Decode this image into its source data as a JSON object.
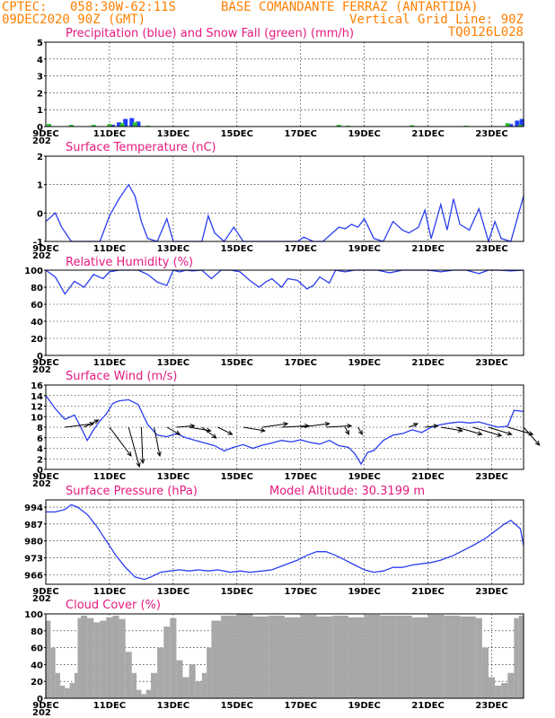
{
  "header": {
    "line1_left": "CPTEC:",
    "line1_coords": "058:30W-62:11S",
    "line1_station": "BASE COMANDANTE FERRAZ (ANTARTIDA)",
    "line2_date": "09DEC2020 90Z (GMT)",
    "line2_grid": "Vertical Grid Line: 90Z",
    "line3_model": "TQ0126L028"
  },
  "x_axis": {
    "labels": [
      "9DEC",
      "11DEC",
      "13DEC",
      "15DEC",
      "17DEC",
      "19DEC",
      "21DEC",
      "23DEC"
    ],
    "label_days": [
      9,
      11,
      13,
      15,
      17,
      19,
      21,
      23
    ],
    "start_day": 9,
    "end_day": 24,
    "stub": "202"
  },
  "colors": {
    "header": "#ff7f00",
    "panel_title": "#e6197f",
    "line": "#2b3ef0",
    "precip": "#1f3fff",
    "snow": "#2dbf2d",
    "cloud": "#a8a8a8"
  },
  "chart_data": [
    {
      "type": "bar",
      "id": "precip",
      "title": "Precipitation (blue) and Snow Fall (green) (mm/h)",
      "ylim": [
        0,
        5
      ],
      "yticks": [
        0,
        1,
        2,
        3,
        4,
        5
      ],
      "series": [
        {
          "name": "Precipitation",
          "color": "#1f3fff",
          "x": [
            11.1,
            11.3,
            11.5,
            11.7,
            11.9,
            23.6,
            23.8,
            23.95
          ],
          "values": [
            0.1,
            0.25,
            0.45,
            0.5,
            0.3,
            0.15,
            0.35,
            0.45
          ]
        },
        {
          "name": "Snow Fall",
          "color": "#2dbf2d",
          "x": [
            9.1,
            9.8,
            10.5,
            11.0,
            11.4,
            11.8,
            12.2,
            18.2,
            18.5,
            20.5,
            22.2,
            23.5,
            23.9
          ],
          "values": [
            0.15,
            0.1,
            0.1,
            0.15,
            0.2,
            0.25,
            0.05,
            0.1,
            0.05,
            0.08,
            0.05,
            0.2,
            0.1
          ]
        }
      ]
    },
    {
      "type": "line",
      "id": "temperature",
      "title": "Surface Temperature (nC)",
      "ylim": [
        -1,
        2
      ],
      "yticks": [
        -1,
        0,
        1,
        2
      ],
      "x": [
        9.0,
        9.3,
        9.5,
        9.8,
        10.1,
        10.4,
        10.7,
        11.0,
        11.3,
        11.6,
        11.8,
        12.0,
        12.2,
        12.5,
        12.8,
        13.0,
        13.3,
        13.6,
        13.9,
        14.1,
        14.3,
        14.6,
        14.9,
        15.2,
        15.5,
        15.8,
        16.1,
        16.4,
        16.7,
        16.9,
        17.1,
        17.4,
        17.7,
        18.0,
        18.2,
        18.4,
        18.6,
        18.8,
        19.0,
        19.3,
        19.6,
        19.9,
        20.2,
        20.4,
        20.7,
        20.9,
        21.1,
        21.4,
        21.6,
        21.8,
        22.0,
        22.3,
        22.6,
        22.9,
        23.1,
        23.3,
        23.6,
        23.8,
        24.0
      ],
      "values": [
        -0.3,
        0.0,
        -0.5,
        -1.0,
        -1.0,
        -1.0,
        -1.0,
        -0.1,
        0.5,
        1.0,
        0.6,
        -0.3,
        -0.9,
        -1.0,
        -0.2,
        -1.0,
        -1.0,
        -1.0,
        -1.0,
        -0.1,
        -0.7,
        -1.0,
        -0.5,
        -1.0,
        -1.0,
        -1.0,
        -1.0,
        -1.0,
        -1.0,
        -1.0,
        -0.85,
        -1.0,
        -1.0,
        -0.7,
        -0.5,
        -0.55,
        -0.4,
        -0.5,
        -0.2,
        -0.9,
        -1.0,
        -0.3,
        -0.6,
        -0.7,
        -0.5,
        0.1,
        -0.9,
        0.3,
        -0.6,
        0.5,
        -0.4,
        -0.6,
        0.15,
        -1.0,
        -0.3,
        -0.9,
        -1.0,
        -0.2,
        0.6
      ]
    },
    {
      "type": "line",
      "id": "humidity",
      "title": "Relative Humidity (%)",
      "ylim": [
        0,
        100
      ],
      "yticks": [
        0,
        20,
        40,
        60,
        80,
        100
      ],
      "x": [
        9.0,
        9.3,
        9.6,
        9.9,
        10.2,
        10.5,
        10.8,
        11.0,
        11.3,
        11.6,
        11.9,
        12.2,
        12.5,
        12.8,
        13.0,
        13.2,
        13.4,
        13.6,
        13.9,
        14.2,
        14.5,
        14.8,
        15.1,
        15.4,
        15.7,
        15.9,
        16.1,
        16.4,
        16.6,
        16.9,
        17.2,
        17.4,
        17.6,
        17.9,
        18.1,
        18.4,
        18.7,
        19.0,
        19.4,
        19.8,
        20.2,
        20.6,
        21.0,
        21.4,
        21.8,
        22.2,
        22.6,
        22.9,
        23.2,
        23.6,
        24.0
      ],
      "values": [
        100,
        92,
        72,
        87,
        80,
        95,
        90,
        98,
        100,
        100,
        100,
        95,
        86,
        82,
        100,
        98,
        100,
        99,
        100,
        90,
        100,
        100,
        98,
        88,
        80,
        86,
        90,
        80,
        90,
        88,
        78,
        82,
        92,
        85,
        100,
        98,
        100,
        100,
        100,
        97,
        100,
        100,
        100,
        98,
        100,
        100,
        96,
        100,
        100,
        99,
        100
      ]
    },
    {
      "type": "line",
      "id": "wind",
      "title": "Surface Wind (m/s)",
      "ylim": [
        0,
        16
      ],
      "yticks": [
        0,
        2,
        4,
        6,
        8,
        10,
        12,
        14,
        16
      ],
      "x": [
        9.0,
        9.3,
        9.6,
        9.9,
        10.1,
        10.3,
        10.5,
        10.7,
        10.9,
        11.1,
        11.3,
        11.6,
        11.9,
        12.2,
        12.5,
        12.8,
        13.1,
        13.4,
        13.7,
        14.0,
        14.3,
        14.6,
        14.9,
        15.2,
        15.5,
        15.8,
        16.1,
        16.4,
        16.7,
        17.0,
        17.3,
        17.6,
        17.9,
        18.2,
        18.5,
        18.7,
        18.9,
        19.1,
        19.3,
        19.6,
        19.9,
        20.2,
        20.5,
        20.8,
        21.1,
        21.4,
        21.7,
        22.0,
        22.3,
        22.6,
        22.9,
        23.2,
        23.5,
        23.7,
        24.0
      ],
      "values": [
        14,
        11.5,
        9.5,
        10.3,
        8.0,
        5.5,
        7.5,
        9.2,
        10.5,
        12.5,
        13.0,
        13.2,
        12.3,
        8.5,
        6.5,
        6.2,
        6.8,
        6.0,
        5.5,
        5.0,
        4.5,
        3.5,
        4.2,
        4.7,
        4.0,
        4.6,
        5.0,
        5.5,
        5.2,
        5.6,
        5.1,
        4.8,
        5.5,
        4.5,
        4.2,
        3.0,
        1.0,
        3.2,
        3.6,
        5.5,
        6.5,
        6.8,
        7.5,
        7.0,
        8.0,
        8.5,
        8.8,
        9.0,
        8.8,
        9.0,
        8.5,
        8.0,
        8.2,
        11.2,
        11.0
      ]
    },
    {
      "type": "line",
      "id": "pressure",
      "title": "Surface Pressure (hPa)",
      "annotation": "Model Altitude: 30.3199 m",
      "ylim": [
        962,
        997
      ],
      "yticks": [
        966,
        973,
        980,
        987,
        994
      ],
      "x": [
        9.0,
        9.3,
        9.6,
        9.8,
        10.0,
        10.3,
        10.6,
        10.9,
        11.2,
        11.5,
        11.8,
        12.1,
        12.3,
        12.6,
        12.9,
        13.2,
        13.5,
        13.8,
        14.1,
        14.4,
        14.8,
        15.1,
        15.4,
        15.8,
        16.1,
        16.5,
        16.9,
        17.2,
        17.5,
        17.8,
        18.1,
        18.4,
        18.7,
        19.0,
        19.3,
        19.6,
        19.9,
        20.2,
        20.5,
        20.8,
        21.1,
        21.4,
        21.8,
        22.1,
        22.4,
        22.8,
        23.1,
        23.4,
        23.6,
        23.9,
        24.0
      ],
      "values": [
        992,
        992,
        993,
        995,
        994,
        991,
        986,
        980,
        974,
        969,
        965,
        964,
        965,
        967,
        967.5,
        968,
        967.5,
        968,
        967.5,
        968,
        967,
        967.5,
        967,
        967.5,
        968,
        970,
        972,
        974,
        975.5,
        975.5,
        974,
        972,
        970,
        968,
        967,
        967.5,
        969,
        969,
        970,
        970.5,
        971,
        972,
        974,
        976,
        978,
        981,
        984,
        987,
        988.5,
        985,
        978
      ]
    },
    {
      "type": "area",
      "id": "cloud",
      "title": "Cloud Cover (%)",
      "ylim": [
        0,
        100
      ],
      "yticks": [
        0,
        20,
        40,
        60,
        80,
        100
      ],
      "x": [
        9.0,
        9.15,
        9.3,
        9.45,
        9.6,
        9.75,
        9.9,
        10.0,
        10.1,
        10.3,
        10.5,
        10.7,
        10.9,
        11.1,
        11.3,
        11.5,
        11.7,
        11.85,
        12.0,
        12.15,
        12.3,
        12.5,
        12.7,
        12.9,
        13.1,
        13.3,
        13.5,
        13.7,
        13.9,
        14.05,
        14.2,
        14.5,
        15.0,
        15.5,
        16.0,
        16.5,
        17.0,
        17.5,
        18.0,
        18.5,
        19.0,
        19.5,
        20.0,
        20.5,
        21.0,
        21.5,
        22.0,
        22.5,
        22.7,
        22.9,
        23.1,
        23.3,
        23.5,
        23.7,
        23.85,
        24.0
      ],
      "values": [
        92,
        60,
        30,
        15,
        12,
        18,
        30,
        95,
        98,
        95,
        90,
        92,
        96,
        98,
        94,
        55,
        30,
        10,
        5,
        10,
        30,
        60,
        85,
        95,
        45,
        25,
        40,
        20,
        30,
        60,
        92,
        98,
        100,
        97,
        98,
        96,
        99,
        97,
        98,
        96,
        99,
        98,
        98,
        96,
        99,
        98,
        97,
        95,
        60,
        25,
        15,
        18,
        30,
        95,
        98,
        97
      ]
    }
  ],
  "wind_vectors": {
    "x": [
      9.6,
      10.2,
      11.0,
      11.6,
      12.0,
      12.4,
      12.8,
      13.1,
      13.5,
      13.9,
      14.4,
      15.2,
      15.8,
      16.4,
      17.0,
      17.8,
      18.4,
      18.8,
      20.4,
      20.9,
      21.4,
      21.9,
      22.4,
      22.9,
      23.5,
      24.0
    ],
    "u": [
      4,
      2,
      3,
      1.5,
      0.2,
      0.8,
      1.8,
      2.5,
      3.0,
      2.0,
      2.0,
      3.0,
      3.5,
      3.8,
      4.0,
      3.5,
      0.5,
      0.6,
      1.2,
      1.8,
      3.0,
      3.5,
      4.0,
      3.2,
      3.5,
      2.2
    ],
    "v": [
      0.5,
      1.0,
      -4.0,
      -5.5,
      -5.0,
      -4.0,
      -1.0,
      0.2,
      -0.5,
      -1.5,
      -1.0,
      -0.5,
      0.5,
      0.2,
      0.5,
      0.2,
      -1.0,
      -1.0,
      0.5,
      0.2,
      -0.5,
      -1.0,
      -1.2,
      -1.0,
      -1.0,
      -2.5
    ]
  }
}
